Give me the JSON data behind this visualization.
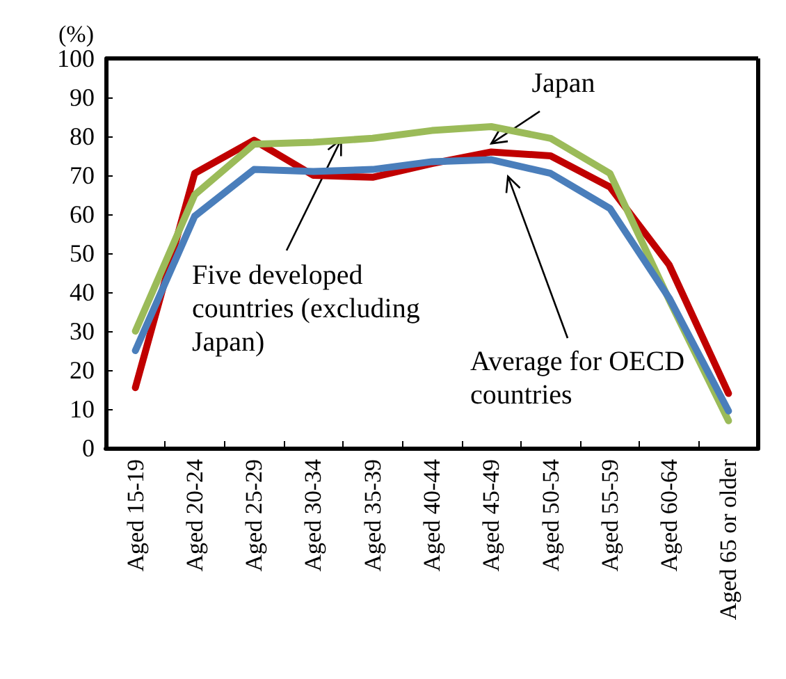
{
  "chart_data": {
    "type": "line",
    "ylabel": "(%)",
    "categories": [
      "Aged 15-19",
      "Aged 20-24",
      "Aged 25-29",
      "Aged 30-34",
      "Aged 35-39",
      "Aged 40-44",
      "Aged 45-49",
      "Aged 50-54",
      "Aged 55-59",
      "Aged 60-64",
      "Aged 65 or older"
    ],
    "series": [
      {
        "name": "Japan",
        "color": "#c00000",
        "values": [
          15.5,
          70.5,
          79,
          70,
          69.5,
          73,
          76,
          75,
          67,
          47,
          14
        ]
      },
      {
        "name": "Five developed countries (excluding Japan)",
        "color": "#9bbb59",
        "values": [
          30,
          65,
          78,
          78.5,
          79.5,
          81.5,
          82.5,
          79.5,
          70.5,
          38,
          7
        ]
      },
      {
        "name": "Average for OECD countries",
        "color": "#4a7ebb",
        "values": [
          25,
          59.5,
          71.5,
          71,
          71.5,
          73.5,
          74,
          70.5,
          61.5,
          38.5,
          9.5
        ]
      }
    ],
    "ylim": [
      0,
      100
    ],
    "yticks": [
      0,
      10,
      20,
      30,
      40,
      50,
      60,
      70,
      80,
      90,
      100
    ],
    "grid": false,
    "legend": false,
    "marker": "none",
    "line_style": "solid"
  }
}
